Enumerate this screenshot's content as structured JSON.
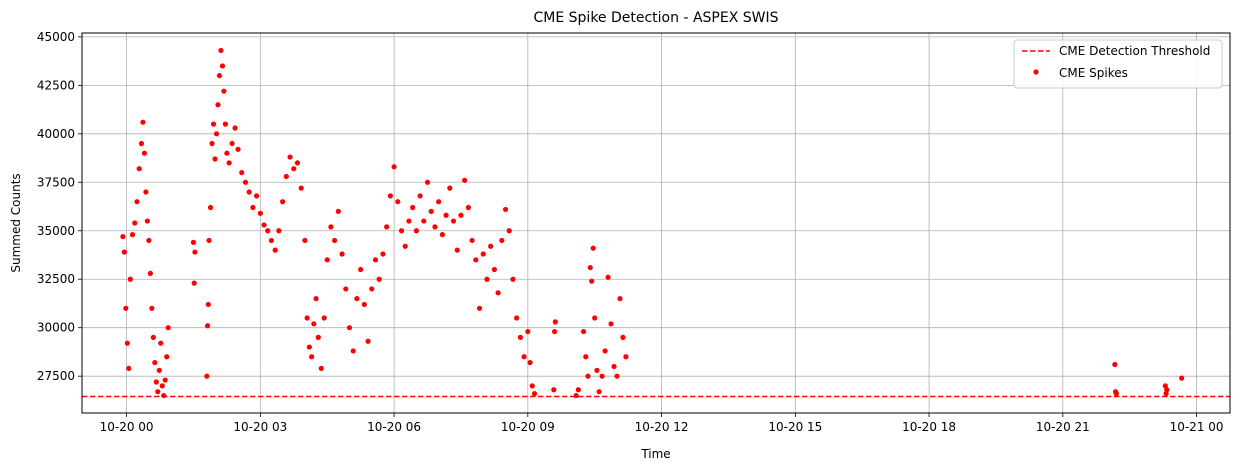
{
  "chart_data": {
    "type": "scatter",
    "title": "CME Spike Detection - ASPEX SWIS",
    "xlabel": "Time",
    "ylabel": "Summed Counts",
    "x_unit": "datetime",
    "xlim": [
      "2025-10-19 23:00",
      "2025-10-21 00:45"
    ],
    "ylim": [
      25600,
      45200
    ],
    "x_ticks": [
      {
        "t": "2025-10-20 00:00",
        "label": "10-20 00"
      },
      {
        "t": "2025-10-20 03:00",
        "label": "10-20 03"
      },
      {
        "t": "2025-10-20 06:00",
        "label": "10-20 06"
      },
      {
        "t": "2025-10-20 09:00",
        "label": "10-20 09"
      },
      {
        "t": "2025-10-20 12:00",
        "label": "10-20 12"
      },
      {
        "t": "2025-10-20 15:00",
        "label": "10-20 15"
      },
      {
        "t": "2025-10-20 18:00",
        "label": "10-20 18"
      },
      {
        "t": "2025-10-20 21:00",
        "label": "10-20 21"
      },
      {
        "t": "2025-10-21 00:00",
        "label": "10-21 00"
      }
    ],
    "y_ticks": [
      27500,
      30000,
      32500,
      35000,
      37500,
      40000,
      42500,
      45000
    ],
    "grid": true,
    "legend_position": "top-right",
    "threshold": {
      "name": "CME Detection Threshold",
      "value": 26450,
      "color": "#ff0000",
      "style": "dashed"
    },
    "series": [
      {
        "name": "CME Spikes",
        "color": "#ff0000",
        "points": [
          [
            "2025-10-19 23:55",
            34700
          ],
          [
            "2025-10-19 23:57",
            33900
          ],
          [
            "2025-10-19 23:59",
            31000
          ],
          [
            "2025-10-20 00:01",
            29200
          ],
          [
            "2025-10-20 00:03",
            27900
          ],
          [
            "2025-10-20 00:05",
            32500
          ],
          [
            "2025-10-20 00:08",
            34800
          ],
          [
            "2025-10-20 00:11",
            35400
          ],
          [
            "2025-10-20 00:14",
            36500
          ],
          [
            "2025-10-20 00:17",
            38200
          ],
          [
            "2025-10-20 00:20",
            39500
          ],
          [
            "2025-10-20 00:22",
            40600
          ],
          [
            "2025-10-20 00:24",
            39000
          ],
          [
            "2025-10-20 00:26",
            37000
          ],
          [
            "2025-10-20 00:28",
            35500
          ],
          [
            "2025-10-20 00:30",
            34500
          ],
          [
            "2025-10-20 00:32",
            32800
          ],
          [
            "2025-10-20 00:34",
            31000
          ],
          [
            "2025-10-20 00:36",
            29500
          ],
          [
            "2025-10-20 00:38",
            28200
          ],
          [
            "2025-10-20 00:40",
            27200
          ],
          [
            "2025-10-20 00:42",
            26700
          ],
          [
            "2025-10-20 00:44",
            27800
          ],
          [
            "2025-10-20 00:46",
            29200
          ],
          [
            "2025-10-20 00:48",
            27000
          ],
          [
            "2025-10-20 00:50",
            26500
          ],
          [
            "2025-10-20 00:52",
            27300
          ],
          [
            "2025-10-20 00:54",
            28500
          ],
          [
            "2025-10-20 00:56",
            30000
          ],
          [
            "2025-10-20 01:30",
            34400
          ],
          [
            "2025-10-20 01:31",
            32300
          ],
          [
            "2025-10-20 01:32",
            33900
          ],
          [
            "2025-10-20 01:48",
            27500
          ],
          [
            "2025-10-20 01:49",
            30100
          ],
          [
            "2025-10-20 01:50",
            31200
          ],
          [
            "2025-10-20 01:51",
            34500
          ],
          [
            "2025-10-20 01:53",
            36200
          ],
          [
            "2025-10-20 01:55",
            39500
          ],
          [
            "2025-10-20 01:57",
            40500
          ],
          [
            "2025-10-20 01:59",
            38700
          ],
          [
            "2025-10-20 02:01",
            40000
          ],
          [
            "2025-10-20 02:03",
            41500
          ],
          [
            "2025-10-20 02:05",
            43000
          ],
          [
            "2025-10-20 02:07",
            44300
          ],
          [
            "2025-10-20 02:09",
            43500
          ],
          [
            "2025-10-20 02:11",
            42200
          ],
          [
            "2025-10-20 02:13",
            40500
          ],
          [
            "2025-10-20 02:15",
            39000
          ],
          [
            "2025-10-20 02:18",
            38500
          ],
          [
            "2025-10-20 02:22",
            39500
          ],
          [
            "2025-10-20 02:26",
            40300
          ],
          [
            "2025-10-20 02:30",
            39200
          ],
          [
            "2025-10-20 02:35",
            38000
          ],
          [
            "2025-10-20 02:40",
            37500
          ],
          [
            "2025-10-20 02:45",
            37000
          ],
          [
            "2025-10-20 02:50",
            36200
          ],
          [
            "2025-10-20 02:55",
            36800
          ],
          [
            "2025-10-20 03:00",
            35900
          ],
          [
            "2025-10-20 03:05",
            35300
          ],
          [
            "2025-10-20 03:10",
            35000
          ],
          [
            "2025-10-20 03:15",
            34500
          ],
          [
            "2025-10-20 03:20",
            34000
          ],
          [
            "2025-10-20 03:25",
            35000
          ],
          [
            "2025-10-20 03:30",
            36500
          ],
          [
            "2025-10-20 03:35",
            37800
          ],
          [
            "2025-10-20 03:40",
            38800
          ],
          [
            "2025-10-20 03:45",
            38200
          ],
          [
            "2025-10-20 03:50",
            38500
          ],
          [
            "2025-10-20 03:55",
            37200
          ],
          [
            "2025-10-20 04:00",
            34500
          ],
          [
            "2025-10-20 04:03",
            30500
          ],
          [
            "2025-10-20 04:06",
            29000
          ],
          [
            "2025-10-20 04:09",
            28500
          ],
          [
            "2025-10-20 04:12",
            30200
          ],
          [
            "2025-10-20 04:15",
            31500
          ],
          [
            "2025-10-20 04:18",
            29500
          ],
          [
            "2025-10-20 04:22",
            27900
          ],
          [
            "2025-10-20 04:26",
            30500
          ],
          [
            "2025-10-20 04:30",
            33500
          ],
          [
            "2025-10-20 04:35",
            35200
          ],
          [
            "2025-10-20 04:40",
            34500
          ],
          [
            "2025-10-20 04:45",
            36000
          ],
          [
            "2025-10-20 04:50",
            33800
          ],
          [
            "2025-10-20 04:55",
            32000
          ],
          [
            "2025-10-20 05:00",
            30000
          ],
          [
            "2025-10-20 05:05",
            28800
          ],
          [
            "2025-10-20 05:10",
            31500
          ],
          [
            "2025-10-20 05:15",
            33000
          ],
          [
            "2025-10-20 05:20",
            31200
          ],
          [
            "2025-10-20 05:25",
            29300
          ],
          [
            "2025-10-20 05:30",
            32000
          ],
          [
            "2025-10-20 05:35",
            33500
          ],
          [
            "2025-10-20 05:40",
            32500
          ],
          [
            "2025-10-20 05:45",
            33800
          ],
          [
            "2025-10-20 05:50",
            35200
          ],
          [
            "2025-10-20 05:55",
            36800
          ],
          [
            "2025-10-20 06:00",
            38300
          ],
          [
            "2025-10-20 06:05",
            36500
          ],
          [
            "2025-10-20 06:10",
            35000
          ],
          [
            "2025-10-20 06:15",
            34200
          ],
          [
            "2025-10-20 06:20",
            35500
          ],
          [
            "2025-10-20 06:25",
            36200
          ],
          [
            "2025-10-20 06:30",
            35000
          ],
          [
            "2025-10-20 06:35",
            36800
          ],
          [
            "2025-10-20 06:40",
            35500
          ],
          [
            "2025-10-20 06:45",
            37500
          ],
          [
            "2025-10-20 06:50",
            36000
          ],
          [
            "2025-10-20 06:55",
            35200
          ],
          [
            "2025-10-20 07:00",
            36500
          ],
          [
            "2025-10-20 07:05",
            34800
          ],
          [
            "2025-10-20 07:10",
            35800
          ],
          [
            "2025-10-20 07:15",
            37200
          ],
          [
            "2025-10-20 07:20",
            35500
          ],
          [
            "2025-10-20 07:25",
            34000
          ],
          [
            "2025-10-20 07:30",
            35800
          ],
          [
            "2025-10-20 07:35",
            37600
          ],
          [
            "2025-10-20 07:40",
            36200
          ],
          [
            "2025-10-20 07:45",
            34500
          ],
          [
            "2025-10-20 07:50",
            33500
          ],
          [
            "2025-10-20 07:55",
            31000
          ],
          [
            "2025-10-20 08:00",
            33800
          ],
          [
            "2025-10-20 08:05",
            32500
          ],
          [
            "2025-10-20 08:10",
            34200
          ],
          [
            "2025-10-20 08:15",
            33000
          ],
          [
            "2025-10-20 08:20",
            31800
          ],
          [
            "2025-10-20 08:25",
            34500
          ],
          [
            "2025-10-20 08:30",
            36100
          ],
          [
            "2025-10-20 08:35",
            35000
          ],
          [
            "2025-10-20 08:40",
            32500
          ],
          [
            "2025-10-20 08:45",
            30500
          ],
          [
            "2025-10-20 08:50",
            29500
          ],
          [
            "2025-10-20 08:55",
            28500
          ],
          [
            "2025-10-20 09:00",
            29800
          ],
          [
            "2025-10-20 09:03",
            28200
          ],
          [
            "2025-10-20 09:06",
            27000
          ],
          [
            "2025-10-20 09:09",
            26600
          ],
          [
            "2025-10-20 09:35",
            26800
          ],
          [
            "2025-10-20 09:36",
            29800
          ],
          [
            "2025-10-20 09:37",
            30300
          ],
          [
            "2025-10-20 10:05",
            26500
          ],
          [
            "2025-10-20 10:08",
            26800
          ],
          [
            "2025-10-20 10:15",
            29800
          ],
          [
            "2025-10-20 10:18",
            28500
          ],
          [
            "2025-10-20 10:21",
            27500
          ],
          [
            "2025-10-20 10:24",
            33100
          ],
          [
            "2025-10-20 10:26",
            32400
          ],
          [
            "2025-10-20 10:28",
            34100
          ],
          [
            "2025-10-20 10:30",
            30500
          ],
          [
            "2025-10-20 10:33",
            27800
          ],
          [
            "2025-10-20 10:36",
            26700
          ],
          [
            "2025-10-20 10:40",
            27500
          ],
          [
            "2025-10-20 10:44",
            28800
          ],
          [
            "2025-10-20 10:48",
            32600
          ],
          [
            "2025-10-20 10:52",
            30200
          ],
          [
            "2025-10-20 10:56",
            28000
          ],
          [
            "2025-10-20 11:00",
            27500
          ],
          [
            "2025-10-20 11:04",
            31500
          ],
          [
            "2025-10-20 11:08",
            29500
          ],
          [
            "2025-10-20 11:12",
            28500
          ],
          [
            "2025-10-20 22:10",
            28100
          ],
          [
            "2025-10-20 22:11",
            26700
          ],
          [
            "2025-10-20 22:12",
            26600
          ],
          [
            "2025-10-20 23:18",
            27000
          ],
          [
            "2025-10-20 23:19",
            26600
          ],
          [
            "2025-10-20 23:20",
            26800
          ],
          [
            "2025-10-20 23:40",
            27400
          ]
        ]
      }
    ]
  }
}
